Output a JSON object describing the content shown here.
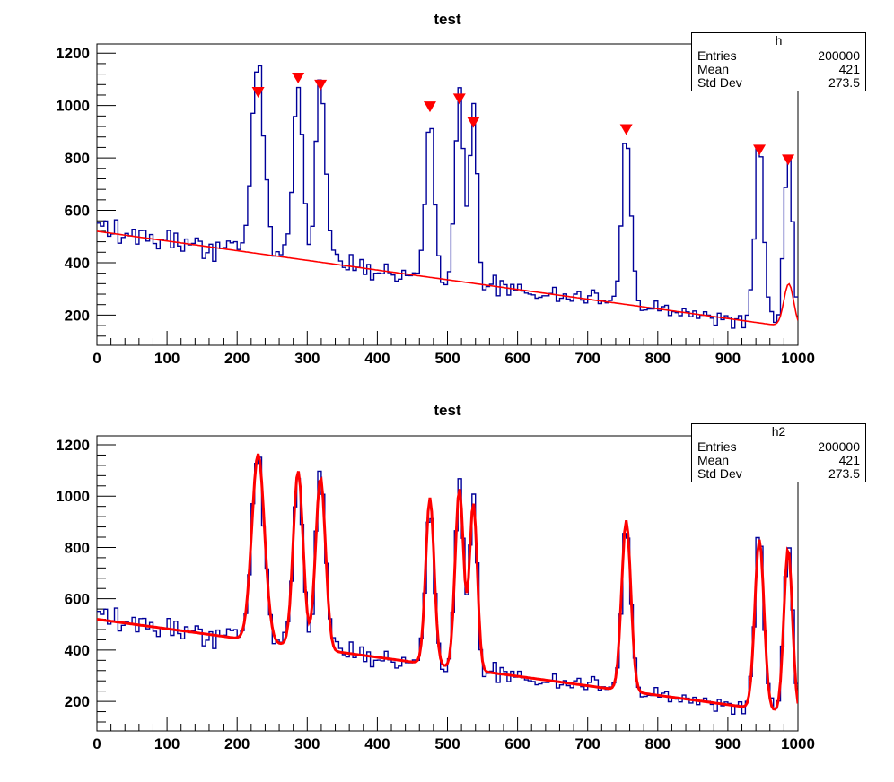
{
  "window": {
    "background": "#ffffff"
  },
  "panels": [
    {
      "title": "test",
      "stats": {
        "name": "h",
        "rows": [
          {
            "label": "Entries",
            "value": "200000"
          },
          {
            "label": "Mean",
            "value": "421"
          },
          {
            "label": "Std Dev",
            "value": "273.5"
          }
        ]
      }
    },
    {
      "title": "test",
      "stats": {
        "name": "h2",
        "rows": [
          {
            "label": "Entries",
            "value": "200000"
          },
          {
            "label": "Mean",
            "value": "421"
          },
          {
            "label": "Std Dev",
            "value": "273.5"
          }
        ]
      }
    }
  ],
  "chart_data": [
    {
      "type": "line",
      "subtype": "histogram-step-with-peak-search",
      "title": "test",
      "histogram_name": "h",
      "entries": 200000,
      "mean": 421,
      "std_dev": 273.5,
      "xlim": [
        0,
        1000
      ],
      "ylim": [
        85,
        1235
      ],
      "x_major_ticks": [
        0,
        100,
        200,
        300,
        400,
        500,
        600,
        700,
        800,
        900,
        1000
      ],
      "y_major_ticks": [
        200,
        400,
        600,
        800,
        1000,
        1200
      ],
      "x_minor_step": 20,
      "y_minor_step": 40,
      "grid": false,
      "legend": "none",
      "bins": 200,
      "noise_seed": 12,
      "baseline": {
        "x0": 0,
        "y0": 520,
        "x1": 1000,
        "y1": 150
      },
      "peaks": [
        {
          "x": 230,
          "amp": 730,
          "sigma": 9.0
        },
        {
          "x": 287,
          "amp": 685,
          "sigma": 7.0
        },
        {
          "x": 319,
          "amp": 670,
          "sigma": 7.0
        },
        {
          "x": 475,
          "amp": 650,
          "sigma": 6.0
        },
        {
          "x": 517,
          "amp": 700,
          "sigma": 6.0
        },
        {
          "x": 537,
          "amp": 650,
          "sigma": 5.5
        },
        {
          "x": 755,
          "amp": 665,
          "sigma": 6.5
        },
        {
          "x": 945,
          "amp": 660,
          "sigma": 6.5
        },
        {
          "x": 986,
          "amp": 640,
          "sigma": 6.0
        }
      ],
      "found_peak_markers": [
        {
          "x": 230,
          "y": 1050
        },
        {
          "x": 287,
          "y": 1105
        },
        {
          "x": 319,
          "y": 1078
        },
        {
          "x": 475,
          "y": 995
        },
        {
          "x": 517,
          "y": 1025
        },
        {
          "x": 537,
          "y": 935
        },
        {
          "x": 755,
          "y": 908
        },
        {
          "x": 945,
          "y": 830
        },
        {
          "x": 986,
          "y": 792
        }
      ],
      "background_curve": {
        "type": "baseline_plus_edge_bump",
        "bump_x": 987,
        "bump_amp": 165,
        "bump_sigma": 7
      },
      "colors": {
        "histogram": "#000099",
        "curve": "#ff0000",
        "marker": "#ff0000",
        "axis": "#000000"
      }
    },
    {
      "type": "line",
      "subtype": "histogram-step-with-fit",
      "title": "test",
      "histogram_name": "h2",
      "entries": 200000,
      "mean": 421,
      "std_dev": 273.5,
      "xlim": [
        0,
        1000
      ],
      "ylim": [
        85,
        1235
      ],
      "x_major_ticks": [
        0,
        100,
        200,
        300,
        400,
        500,
        600,
        700,
        800,
        900,
        1000
      ],
      "y_major_ticks": [
        200,
        400,
        600,
        800,
        1000,
        1200
      ],
      "x_minor_step": 20,
      "y_minor_step": 40,
      "grid": false,
      "legend": "none",
      "bins": 200,
      "noise_seed": 12,
      "baseline": {
        "x0": 0,
        "y0": 520,
        "x1": 1000,
        "y1": 150
      },
      "peaks": [
        {
          "x": 230,
          "amp": 730,
          "sigma": 9.0
        },
        {
          "x": 287,
          "amp": 685,
          "sigma": 7.0
        },
        {
          "x": 319,
          "amp": 670,
          "sigma": 7.0
        },
        {
          "x": 475,
          "amp": 650,
          "sigma": 6.0
        },
        {
          "x": 517,
          "amp": 700,
          "sigma": 6.0
        },
        {
          "x": 537,
          "amp": 650,
          "sigma": 5.5
        },
        {
          "x": 755,
          "amp": 665,
          "sigma": 6.5
        },
        {
          "x": 945,
          "amp": 660,
          "sigma": 6.5
        },
        {
          "x": 986,
          "amp": 640,
          "sigma": 6.0
        }
      ],
      "found_peak_markers": [],
      "fit_curve": {
        "type": "baseline_plus_peaks"
      },
      "colors": {
        "histogram": "#000099",
        "curve": "#ff0000",
        "marker": "#ff0000",
        "axis": "#000000"
      }
    }
  ]
}
